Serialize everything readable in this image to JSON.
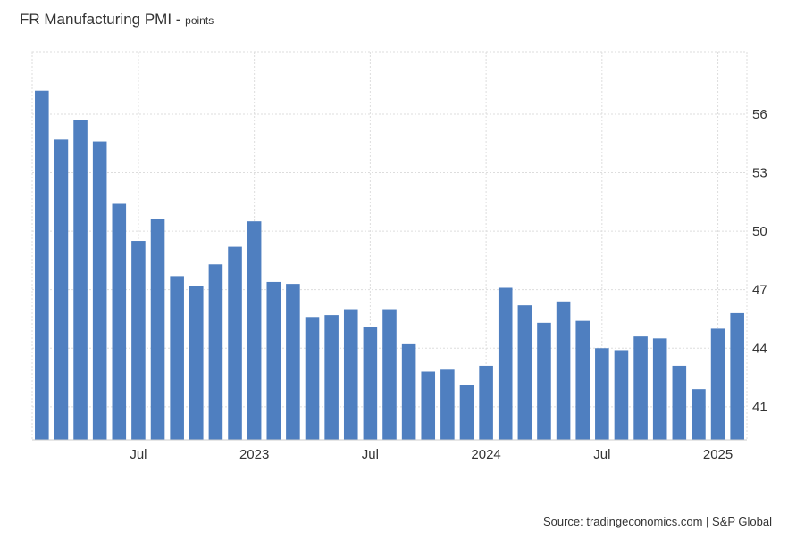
{
  "title": "FR Manufacturing PMI",
  "unit_label": "points",
  "source": "Source: tradingeconomics.com | S&P Global",
  "colors": {
    "bar": "#4f7fc0",
    "grid": "#dddddd",
    "text": "#333333"
  },
  "chart_data": {
    "type": "bar",
    "title": "FR Manufacturing PMI",
    "ylabel": "points",
    "xlabel": "",
    "ylim": [
      39.3,
      59.2
    ],
    "y_ticks": [
      41,
      44,
      47,
      50,
      53,
      56
    ],
    "grid": true,
    "y_axis_position": "right",
    "categories": [
      "2022-02",
      "2022-03",
      "2022-04",
      "2022-05",
      "2022-06",
      "2022-07",
      "2022-08",
      "2022-09",
      "2022-10",
      "2022-11",
      "2022-12",
      "2023-01",
      "2023-02",
      "2023-03",
      "2023-04",
      "2023-05",
      "2023-06",
      "2023-07",
      "2023-08",
      "2023-09",
      "2023-10",
      "2023-11",
      "2023-12",
      "2024-01",
      "2024-02",
      "2024-03",
      "2024-04",
      "2024-05",
      "2024-06",
      "2024-07",
      "2024-08",
      "2024-09",
      "2024-10",
      "2024-11",
      "2024-12",
      "2025-01",
      "2025-02"
    ],
    "values": [
      57.2,
      54.7,
      55.7,
      54.6,
      51.4,
      49.5,
      50.6,
      47.7,
      47.2,
      48.3,
      49.2,
      50.5,
      47.4,
      47.3,
      45.6,
      45.7,
      46.0,
      45.1,
      46.0,
      44.2,
      42.8,
      42.9,
      42.1,
      43.1,
      47.1,
      46.2,
      45.3,
      46.4,
      45.4,
      44.0,
      43.9,
      44.6,
      44.5,
      43.1,
      41.9,
      45.0,
      45.8
    ],
    "x_tick_labels": [
      {
        "label": "Jul",
        "index": 5
      },
      {
        "label": "2023",
        "index": 11
      },
      {
        "label": "Jul",
        "index": 17
      },
      {
        "label": "2024",
        "index": 23
      },
      {
        "label": "Jul",
        "index": 29
      },
      {
        "label": "2025",
        "index": 35
      }
    ]
  }
}
